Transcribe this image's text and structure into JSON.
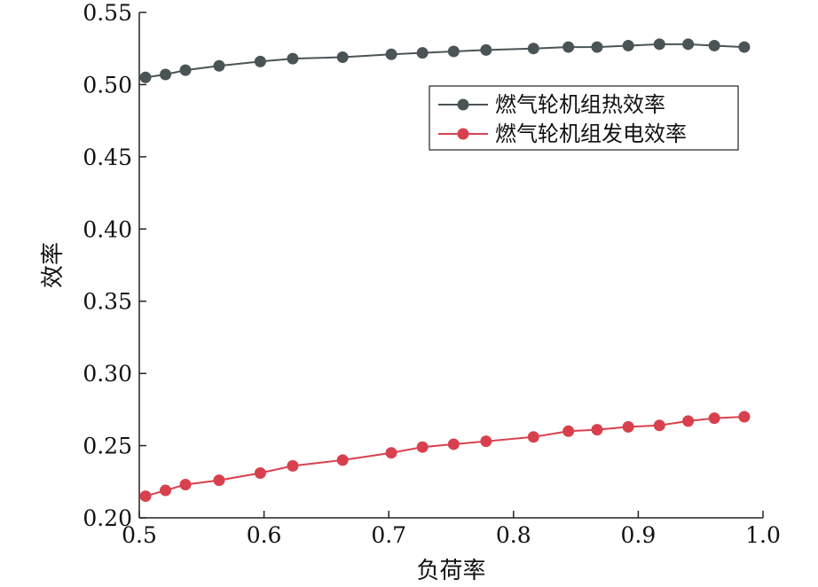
{
  "chart_data": {
    "type": "line",
    "xlabel": "负荷率",
    "ylabel": "效率",
    "xlim": [
      0.5,
      1.0
    ],
    "ylim": [
      0.2,
      0.55
    ],
    "xticks": [
      "0.5",
      "0.6",
      "0.7",
      "0.8",
      "0.9",
      "1.0"
    ],
    "yticks": [
      "0.20",
      "0.25",
      "0.30",
      "0.35",
      "0.40",
      "0.45",
      "0.50",
      "0.55"
    ],
    "grid": false,
    "legend_position": "top-right",
    "series": [
      {
        "name": "燃气轮机组热效率",
        "color": "#4a5457",
        "marker": "circle",
        "x": [
          0.505,
          0.521,
          0.537,
          0.564,
          0.597,
          0.623,
          0.663,
          0.702,
          0.727,
          0.752,
          0.778,
          0.816,
          0.844,
          0.867,
          0.892,
          0.917,
          0.94,
          0.961,
          0.985
        ],
        "y": [
          0.505,
          0.507,
          0.51,
          0.513,
          0.516,
          0.518,
          0.519,
          0.521,
          0.522,
          0.523,
          0.524,
          0.525,
          0.526,
          0.526,
          0.527,
          0.528,
          0.528,
          0.527,
          0.526
        ]
      },
      {
        "name": "燃气轮机组发电效率",
        "color": "#d9404d",
        "marker": "circle",
        "x": [
          0.505,
          0.521,
          0.537,
          0.564,
          0.597,
          0.623,
          0.663,
          0.702,
          0.727,
          0.752,
          0.778,
          0.816,
          0.844,
          0.867,
          0.892,
          0.917,
          0.94,
          0.961,
          0.985
        ],
        "y": [
          0.215,
          0.219,
          0.223,
          0.226,
          0.231,
          0.236,
          0.24,
          0.245,
          0.249,
          0.251,
          0.253,
          0.256,
          0.26,
          0.261,
          0.263,
          0.264,
          0.267,
          0.269,
          0.27
        ]
      }
    ]
  }
}
